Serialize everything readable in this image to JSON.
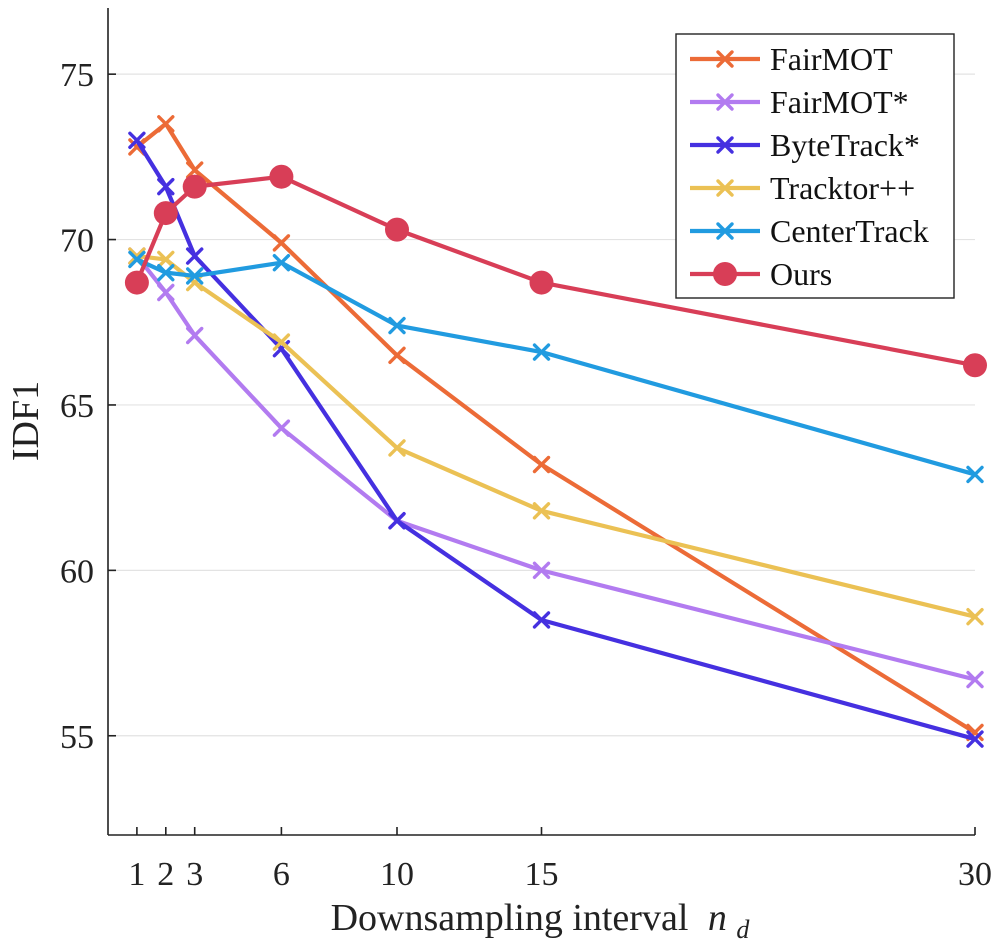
{
  "chart_data": {
    "type": "line",
    "title": "",
    "xlabel": "Downsampling interval",
    "xlabel_symbol": "n",
    "xlabel_subscript": "d",
    "ylabel": "IDF1",
    "x": [
      1,
      2,
      3,
      6,
      10,
      15,
      30
    ],
    "x_ticks": [
      "1",
      "2",
      "3",
      "6",
      "10",
      "15",
      "30"
    ],
    "y_ticks": [
      "55",
      "60",
      "65",
      "70",
      "75"
    ],
    "xlim": [
      0,
      30
    ],
    "ylim": [
      52,
      77
    ],
    "grid": true,
    "legend_position": "top-right",
    "series": [
      {
        "name": "FairMOT",
        "color": "#EC6B37",
        "marker": "x",
        "values": [
          72.8,
          73.5,
          72.1,
          69.9,
          66.5,
          63.2,
          55.1
        ]
      },
      {
        "name": "FairMOT*",
        "color": "#B27BF0",
        "marker": "x",
        "values": [
          69.5,
          68.4,
          67.1,
          64.3,
          61.5,
          60.0,
          56.7
        ]
      },
      {
        "name": "ByteTrack*",
        "color": "#4530E0",
        "marker": "x",
        "values": [
          73.0,
          71.6,
          69.5,
          66.7,
          61.5,
          58.5,
          54.9
        ]
      },
      {
        "name": "Tracktor++",
        "color": "#EBC154",
        "marker": "x",
        "values": [
          69.5,
          69.4,
          68.7,
          66.9,
          63.7,
          61.8,
          58.6
        ]
      },
      {
        "name": "CenterTrack",
        "color": "#219BE0",
        "marker": "x",
        "values": [
          69.4,
          69.0,
          68.9,
          69.3,
          67.4,
          66.6,
          62.9
        ]
      },
      {
        "name": "Ours",
        "color": "#D83E57",
        "marker": "o",
        "values": [
          68.7,
          70.8,
          71.6,
          71.9,
          70.3,
          68.7,
          66.2
        ]
      }
    ]
  }
}
